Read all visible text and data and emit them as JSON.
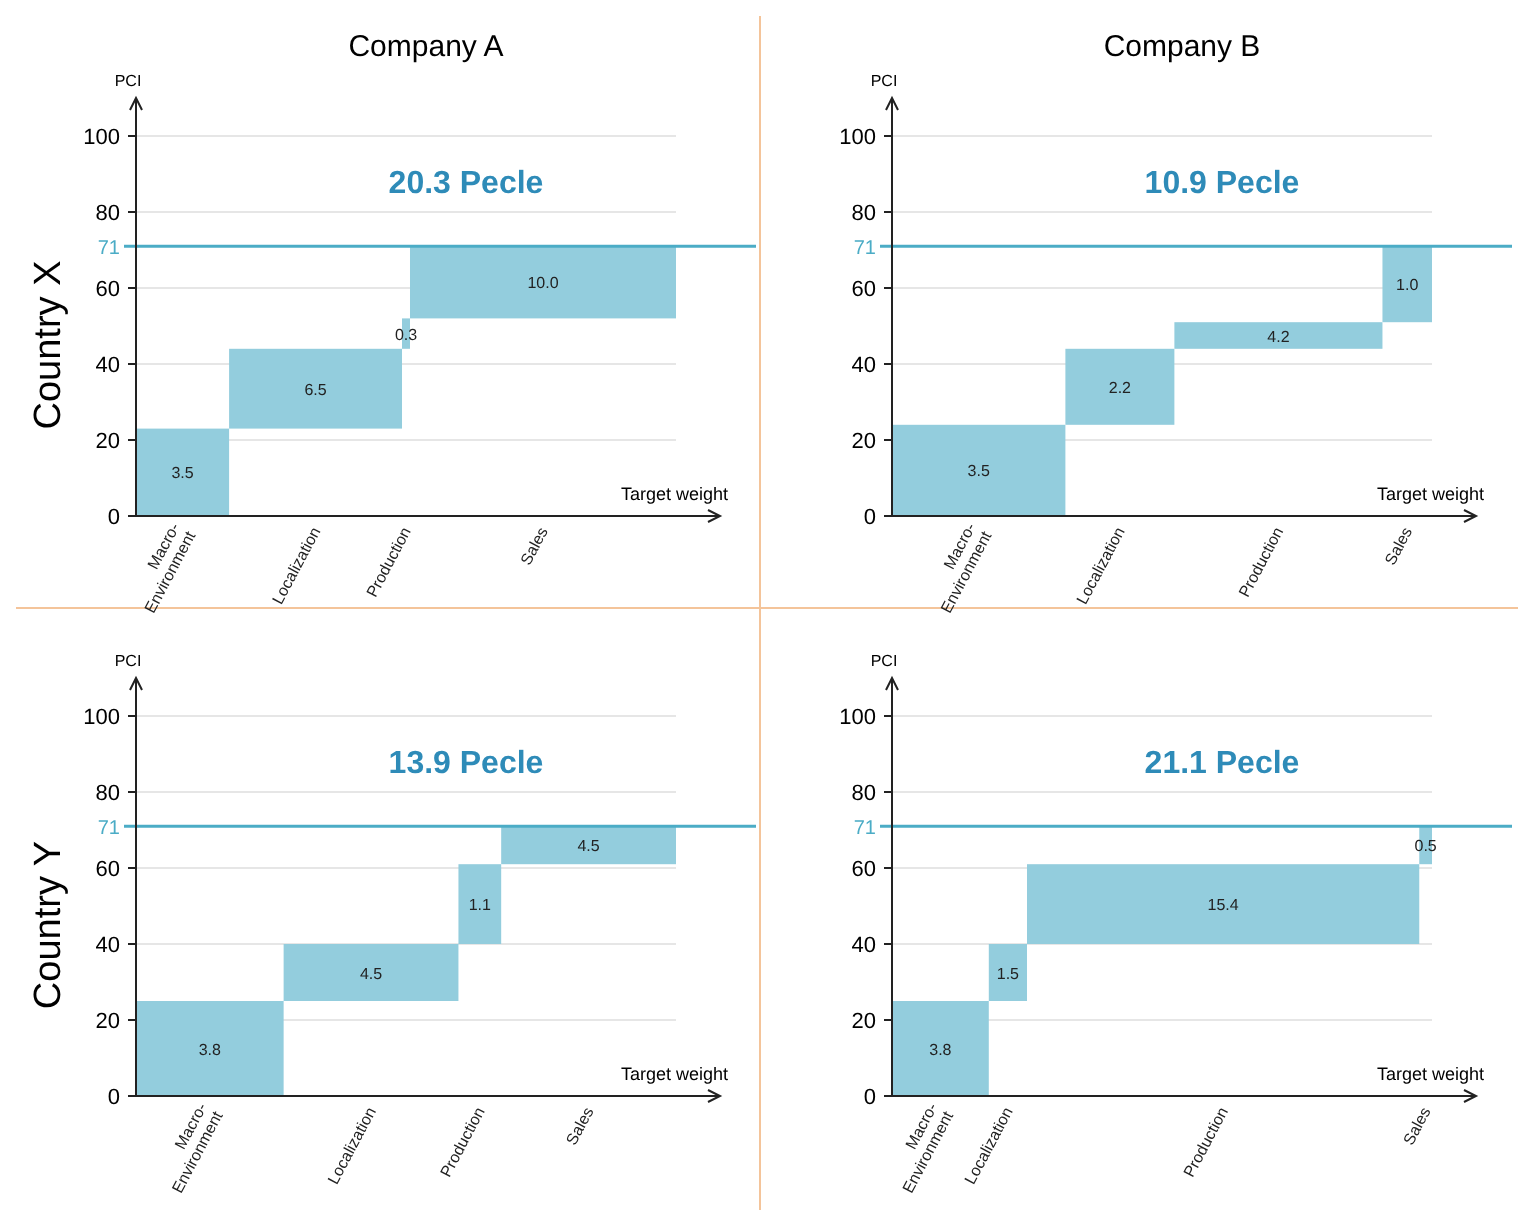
{
  "chart_data": [
    {
      "type": "bar",
      "title": "Company A",
      "ylabel": "PCI",
      "xlabel": "Target weight",
      "categories": [
        "Macro-Environment",
        "Localization",
        "Production",
        "Sales"
      ],
      "base": [
        0,
        23,
        44,
        52
      ],
      "values": [
        23,
        21,
        8,
        19
      ],
      "color": "#93cddd",
      "ylim": [
        0,
        110
      ],
      "yticks": [
        0,
        20,
        40,
        60,
        80,
        100
      ],
      "grid": "y",
      "ref_lines": [
        {
          "axis": "y",
          "value": 71,
          "label": "71",
          "color": "#4bacc6"
        }
      ],
      "annotations": [
        "20.3 Pecle",
        "Country X",
        "3.5",
        "6.5",
        "0.3",
        "10.0"
      ]
    },
    {
      "type": "bar",
      "title": "Company  B",
      "ylabel": "PCI",
      "xlabel": "Target weight",
      "categories": [
        "Macro-Environment",
        "Localization",
        "Production",
        "Sales"
      ],
      "base": [
        0,
        24,
        44,
        51
      ],
      "values": [
        24,
        20,
        7,
        20
      ],
      "color": "#93cddd",
      "ylim": [
        0,
        110
      ],
      "yticks": [
        0,
        20,
        40,
        60,
        80,
        100
      ],
      "grid": "y",
      "ref_lines": [
        {
          "axis": "y",
          "value": 71,
          "label": "71",
          "color": "#4bacc6"
        }
      ],
      "annotations": [
        "10.9 Pecle",
        "3.5",
        "2.2",
        "4.2",
        "1.0"
      ]
    },
    {
      "type": "bar",
      "ylabel": "PCI",
      "xlabel": "Target weight",
      "categories": [
        "Macro-Environment",
        "Localization",
        "Production",
        "Sales"
      ],
      "base": [
        0,
        25,
        40,
        61
      ],
      "values": [
        25,
        15,
        21,
        10
      ],
      "color": "#93cddd",
      "ylim": [
        0,
        110
      ],
      "yticks": [
        0,
        20,
        40,
        60,
        80,
        100
      ],
      "grid": "y",
      "ref_lines": [
        {
          "axis": "y",
          "value": 71,
          "label": "71",
          "color": "#4bacc6"
        }
      ],
      "annotations": [
        "13.9 Pecle",
        "Country  Y",
        "3.8",
        "4.5",
        "1.1",
        "4.5"
      ]
    },
    {
      "type": "bar",
      "ylabel": "PCI",
      "xlabel": "Target weight",
      "categories": [
        "Macro-Environment",
        "Localization",
        "Production",
        "Sales"
      ],
      "base": [
        0,
        25,
        40,
        61
      ],
      "values": [
        25,
        15,
        21,
        10
      ],
      "color": "#93cddd",
      "ylim": [
        0,
        110
      ],
      "yticks": [
        0,
        20,
        40,
        60,
        80,
        100
      ],
      "grid": "y",
      "ref_lines": [
        {
          "axis": "y",
          "value": 71,
          "label": "71",
          "color": "#4bacc6"
        }
      ],
      "annotations": [
        "21.1 Pecle",
        "3.8",
        "1.5",
        "15.4",
        "0.5"
      ]
    }
  ]
}
